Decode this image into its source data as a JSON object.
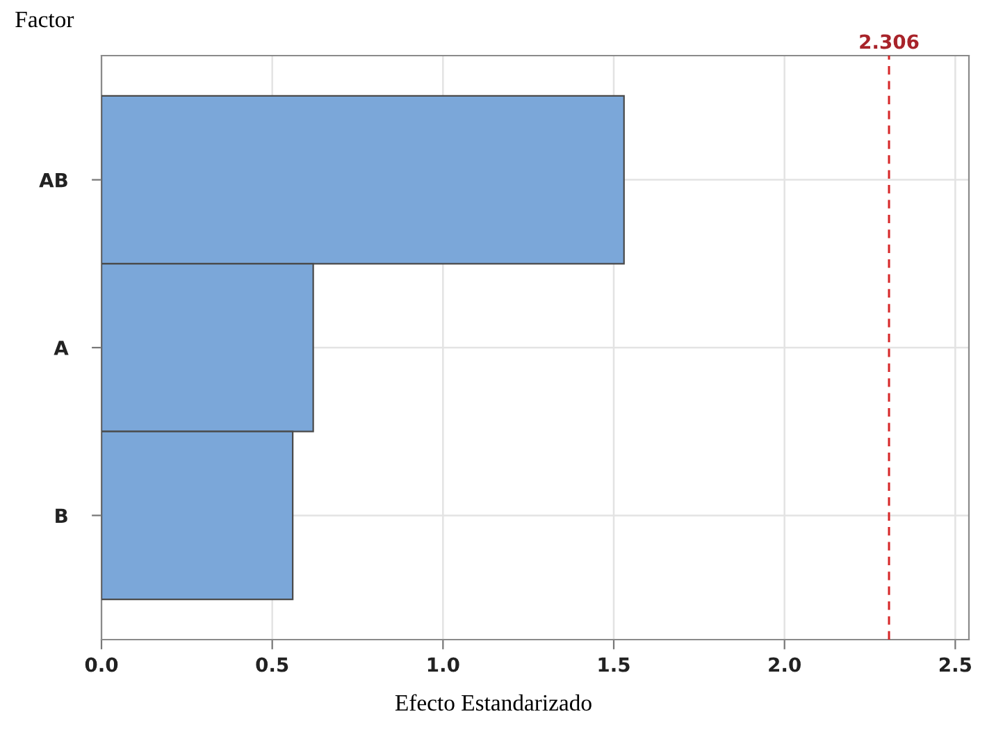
{
  "chart_data": {
    "type": "bar",
    "orientation": "horizontal",
    "xlabel": "Efecto Estandarizado",
    "ylabel": "Factor",
    "categories": [
      "AB",
      "A",
      "B"
    ],
    "values": [
      1.53,
      0.62,
      0.56
    ],
    "color": "#7ba7d9",
    "xlim": [
      0,
      2.54
    ],
    "xticks": [
      {
        "value": 0,
        "label": "0.0"
      },
      0.5,
      {
        "value": 1,
        "label": "1.0"
      },
      1.5,
      {
        "value": 2,
        "label": "2.0"
      },
      2.5
    ],
    "ref_lines": [
      {
        "axis": "x",
        "value": 2.306,
        "label": "2.306",
        "color": "#d62728",
        "line_style": "dashed"
      }
    ],
    "grid": true
  }
}
